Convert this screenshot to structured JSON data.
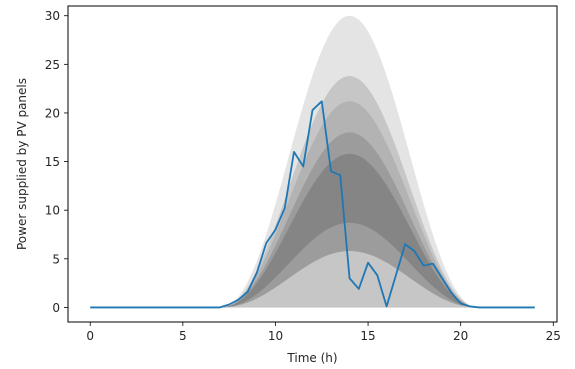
{
  "chart_data": {
    "type": "line",
    "title": "",
    "xlabel": "Time (h)",
    "ylabel": "Power supplied by PV panels",
    "xlim": [
      -1.2,
      25.2
    ],
    "ylim": [
      -1.5,
      31.0
    ],
    "xticks": [
      0,
      5,
      10,
      15,
      20,
      25
    ],
    "xtick_labels": [
      "0",
      "5",
      "10",
      "15",
      "20",
      "25"
    ],
    "yticks": [
      0,
      5,
      10,
      15,
      20,
      25,
      30
    ],
    "ytick_labels": [
      "0",
      "5",
      "10",
      "15",
      "20",
      "25",
      "30"
    ],
    "grid": false,
    "legend": "none",
    "bands": {
      "description_shape": "bell curve between 7 h and 21 h peaking at 14 h",
      "center": 14,
      "start": 7,
      "end": 21,
      "peaks": [
        30,
        23.8,
        21.2,
        18.0,
        15.8,
        8.7,
        5.8
      ],
      "fills": [
        "#e4e4e4",
        "#c6c6c6",
        "#b3b3b3",
        "#9c9c9c",
        "#858585",
        "#9c9c9c",
        "#c6c6c6"
      ]
    },
    "series": [
      {
        "color": "#1f77b4",
        "x": [
          0,
          1,
          2,
          3,
          4,
          5,
          6,
          7,
          7.5,
          8,
          8.5,
          9,
          9.5,
          10,
          10.5,
          11,
          11.5,
          12,
          12.5,
          13,
          13.5,
          14,
          14.5,
          15,
          15.5,
          16,
          16.5,
          17,
          17.5,
          18,
          18.5,
          19,
          19.5,
          20,
          20.5,
          21,
          22,
          23,
          24
        ],
        "y": [
          0,
          0,
          0,
          0,
          0,
          0,
          0,
          0,
          0.3,
          0.8,
          1.6,
          3.6,
          6.6,
          8.0,
          10.2,
          16.0,
          14.5,
          20.3,
          21.2,
          14.0,
          13.6,
          3.0,
          1.9,
          4.6,
          3.3,
          0.1,
          3.3,
          6.5,
          5.8,
          4.3,
          4.5,
          3.0,
          1.5,
          0.4,
          0.1,
          0,
          0,
          0,
          0
        ]
      }
    ]
  }
}
